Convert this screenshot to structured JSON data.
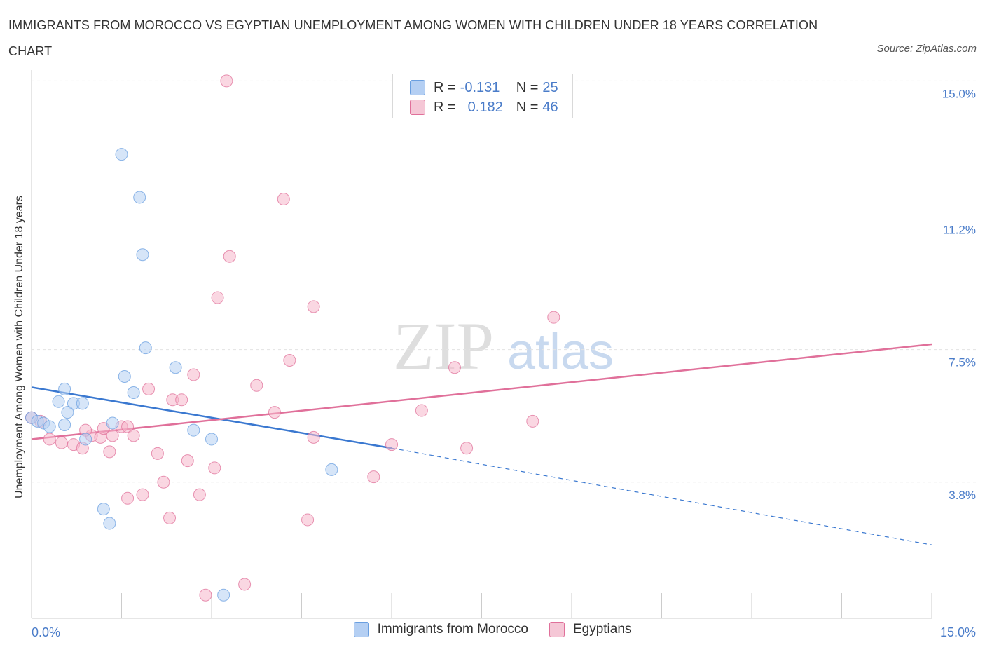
{
  "title": "IMMIGRANTS FROM MOROCCO VS EGYPTIAN UNEMPLOYMENT AMONG WOMEN WITH CHILDREN UNDER 18 YEARS CORRELATION CHART",
  "source": "Source: ZipAtlas.com",
  "watermark": {
    "zip": "ZIP",
    "atlas": "atlas"
  },
  "legend": {
    "r_label": "R =",
    "n_label": "N =",
    "rows": [
      {
        "r": "-0.131",
        "n": "25"
      },
      {
        "r": "0.182",
        "n": "46"
      }
    ]
  },
  "chart_data": {
    "type": "scatter",
    "xlabel": "",
    "ylabel": "Unemployment Among Women with Children Under 18 years",
    "x_tick_labels": [
      "0.0%",
      "15.0%"
    ],
    "y_tick_labels": [
      "15.0%",
      "11.2%",
      "7.5%",
      "3.8%"
    ],
    "y_ticks": [
      15.0,
      11.2,
      7.5,
      3.8
    ],
    "xlim": [
      0,
      15
    ],
    "ylim": [
      0,
      15.3
    ],
    "grid": true,
    "legend_position": "bottom",
    "series": [
      {
        "name": "Immigrants from Morocco",
        "color": "#6a9fe0",
        "fill": "#b4cff3",
        "trend": {
          "x0": 0,
          "y0": 6.45,
          "x1": 6.0,
          "y1": 4.75,
          "dash_x1": 15,
          "dash_y1": 2.05
        },
        "points": [
          [
            0.0,
            5.6
          ],
          [
            0.1,
            5.5
          ],
          [
            0.2,
            5.45
          ],
          [
            0.3,
            5.35
          ],
          [
            0.45,
            6.05
          ],
          [
            0.55,
            6.4
          ],
          [
            0.7,
            6.0
          ],
          [
            0.85,
            6.0
          ],
          [
            0.6,
            5.75
          ],
          [
            0.9,
            5.0
          ],
          [
            1.35,
            5.45
          ],
          [
            1.55,
            6.75
          ],
          [
            1.7,
            6.3
          ],
          [
            1.5,
            12.95
          ],
          [
            1.8,
            11.75
          ],
          [
            1.85,
            10.15
          ],
          [
            1.9,
            7.55
          ],
          [
            2.4,
            7.0
          ],
          [
            2.7,
            5.25
          ],
          [
            3.0,
            5.0
          ],
          [
            1.2,
            3.05
          ],
          [
            1.3,
            2.65
          ],
          [
            5.0,
            4.15
          ],
          [
            3.2,
            0.65
          ],
          [
            0.55,
            5.4
          ]
        ]
      },
      {
        "name": "Egyptians",
        "color": "#e0709a",
        "fill": "#f5b6cb",
        "trend": {
          "x0": 0,
          "y0": 5.0,
          "x1": 15,
          "y1": 7.65
        },
        "points": [
          [
            0.0,
            5.6
          ],
          [
            0.15,
            5.5
          ],
          [
            0.3,
            5.0
          ],
          [
            0.5,
            4.9
          ],
          [
            0.7,
            4.85
          ],
          [
            0.85,
            4.75
          ],
          [
            1.0,
            5.1
          ],
          [
            1.15,
            5.05
          ],
          [
            1.2,
            5.3
          ],
          [
            1.35,
            5.1
          ],
          [
            1.5,
            5.35
          ],
          [
            1.6,
            5.35
          ],
          [
            1.7,
            5.1
          ],
          [
            1.3,
            4.65
          ],
          [
            1.95,
            6.4
          ],
          [
            2.1,
            4.6
          ],
          [
            2.35,
            6.1
          ],
          [
            2.5,
            6.1
          ],
          [
            2.6,
            4.4
          ],
          [
            2.7,
            6.8
          ],
          [
            3.05,
            4.2
          ],
          [
            3.1,
            8.95
          ],
          [
            3.3,
            10.1
          ],
          [
            3.25,
            15.0
          ],
          [
            3.75,
            6.5
          ],
          [
            4.05,
            5.75
          ],
          [
            4.2,
            11.7
          ],
          [
            4.3,
            7.2
          ],
          [
            4.7,
            5.05
          ],
          [
            4.7,
            8.7
          ],
          [
            5.7,
            3.95
          ],
          [
            6.0,
            4.85
          ],
          [
            6.5,
            5.8
          ],
          [
            7.05,
            7.0
          ],
          [
            7.25,
            4.75
          ],
          [
            8.35,
            5.5
          ],
          [
            8.7,
            8.4
          ],
          [
            1.85,
            3.45
          ],
          [
            1.6,
            3.35
          ],
          [
            2.2,
            3.8
          ],
          [
            2.8,
            3.45
          ],
          [
            2.3,
            2.8
          ],
          [
            4.6,
            2.75
          ],
          [
            3.55,
            0.95
          ],
          [
            2.9,
            0.65
          ],
          [
            0.9,
            5.25
          ]
        ]
      }
    ]
  }
}
